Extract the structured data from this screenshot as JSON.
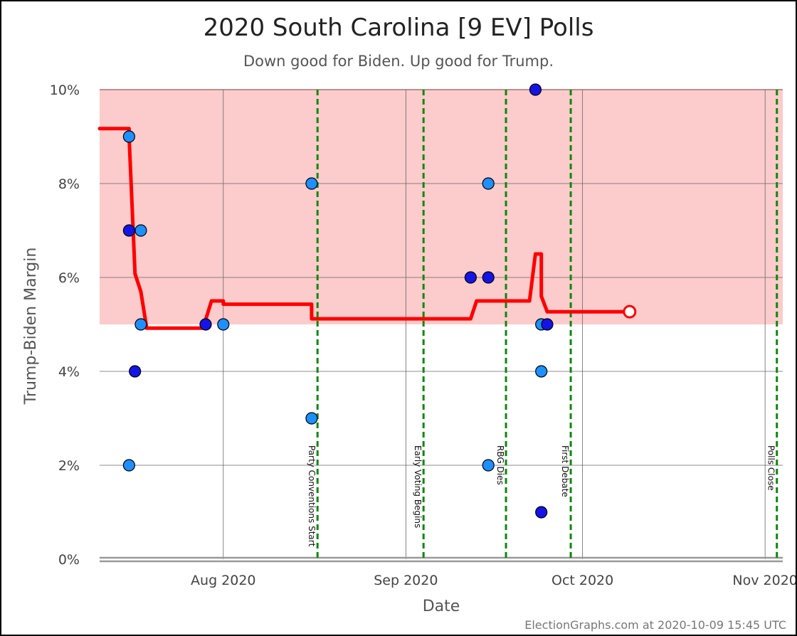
{
  "chart_data": {
    "type": "scatter",
    "title": "2020 South Carolina [9 EV] Polls",
    "subtitle": "Down good for Biden. Up good for Trump.",
    "xlabel": "Date",
    "ylabel": "Trump-Biden Margin",
    "footer": "ElectionGraphs.com at 2020-10-09 15:45 UTC",
    "xlim": [
      "2020-07-11",
      "2020-11-04"
    ],
    "ylim": [
      0,
      10
    ],
    "grid": true,
    "y_ticks": [
      {
        "value": 0,
        "label": "0%"
      },
      {
        "value": 2,
        "label": "2%"
      },
      {
        "value": 4,
        "label": "4%"
      },
      {
        "value": 6,
        "label": "6%"
      },
      {
        "value": 8,
        "label": "8%"
      },
      {
        "value": 10,
        "label": "10%"
      }
    ],
    "x_ticks": [
      {
        "date": "2020-08-01",
        "label": "Aug 2020"
      },
      {
        "date": "2020-09-01",
        "label": "Sep 2020"
      },
      {
        "date": "2020-10-01",
        "label": "Oct 2020"
      },
      {
        "date": "2020-11-01",
        "label": "Nov 2020"
      }
    ],
    "bands": [
      {
        "from": 5,
        "to": 10,
        "color": "#fccbcb",
        "edge_color": "#e88080"
      }
    ],
    "events": [
      {
        "date": "2020-08-17",
        "label": "Party Conventions Start"
      },
      {
        "date": "2020-09-04",
        "label": "Early Voting Begins"
      },
      {
        "date": "2020-09-18",
        "label": "RBG Dies"
      },
      {
        "date": "2020-09-29",
        "label": "First Debate"
      },
      {
        "date": "2020-11-03",
        "label": "Polls Close"
      }
    ],
    "polls": [
      {
        "date": "2020-07-16",
        "margin": 9,
        "color": "#1e8fff"
      },
      {
        "date": "2020-07-16",
        "margin": 7,
        "color": "#1414e6"
      },
      {
        "date": "2020-07-16",
        "margin": 2,
        "color": "#1e8fff"
      },
      {
        "date": "2020-07-17",
        "margin": 4,
        "color": "#1414e6"
      },
      {
        "date": "2020-07-18",
        "margin": 7,
        "color": "#1e8fff"
      },
      {
        "date": "2020-07-18",
        "margin": 5,
        "color": "#1e8fff"
      },
      {
        "date": "2020-07-29",
        "margin": 5,
        "color": "#1414e6"
      },
      {
        "date": "2020-08-01",
        "margin": 5,
        "color": "#1e8fff"
      },
      {
        "date": "2020-08-16",
        "margin": 8,
        "color": "#1e8fff"
      },
      {
        "date": "2020-08-16",
        "margin": 3,
        "color": "#1e8fff"
      },
      {
        "date": "2020-09-12",
        "margin": 6,
        "color": "#1414e6"
      },
      {
        "date": "2020-09-15",
        "margin": 8,
        "color": "#1e8fff"
      },
      {
        "date": "2020-09-15",
        "margin": 6,
        "color": "#1414e6"
      },
      {
        "date": "2020-09-15",
        "margin": 2,
        "color": "#1e8fff"
      },
      {
        "date": "2020-09-23",
        "margin": 10,
        "color": "#1414e6"
      },
      {
        "date": "2020-09-24",
        "margin": 1,
        "color": "#1414e6"
      },
      {
        "date": "2020-09-24",
        "margin": 5,
        "color": "#1e8fff"
      },
      {
        "date": "2020-09-25",
        "margin": 5,
        "color": "#1414e6"
      },
      {
        "date": "2020-09-24",
        "margin": 4,
        "color": "#1e8fff"
      }
    ],
    "average_line": {
      "color": "#ff0000",
      "points": [
        [
          "2020-07-11",
          9.17
        ],
        [
          "2020-07-16",
          9.17
        ],
        [
          "2020-07-16",
          9.0
        ],
        [
          "2020-07-17",
          6.1
        ],
        [
          "2020-07-17",
          6.08
        ],
        [
          "2020-07-18",
          5.7
        ],
        [
          "2020-07-19",
          4.92
        ],
        [
          "2020-07-29",
          4.92
        ],
        [
          "2020-07-29",
          5.1
        ],
        [
          "2020-07-30",
          5.5
        ],
        [
          "2020-08-01",
          5.5
        ],
        [
          "2020-08-01",
          5.43
        ],
        [
          "2020-08-16",
          5.43
        ],
        [
          "2020-08-16",
          5.12
        ],
        [
          "2020-09-12",
          5.12
        ],
        [
          "2020-09-13",
          5.5
        ],
        [
          "2020-09-22",
          5.5
        ],
        [
          "2020-09-23",
          6.5
        ],
        [
          "2020-09-24",
          6.5
        ],
        [
          "2020-09-24",
          5.6
        ],
        [
          "2020-09-25",
          5.27
        ],
        [
          "2020-10-09",
          5.27
        ]
      ],
      "end_marker": {
        "date": "2020-10-09",
        "margin": 5.27
      }
    }
  }
}
